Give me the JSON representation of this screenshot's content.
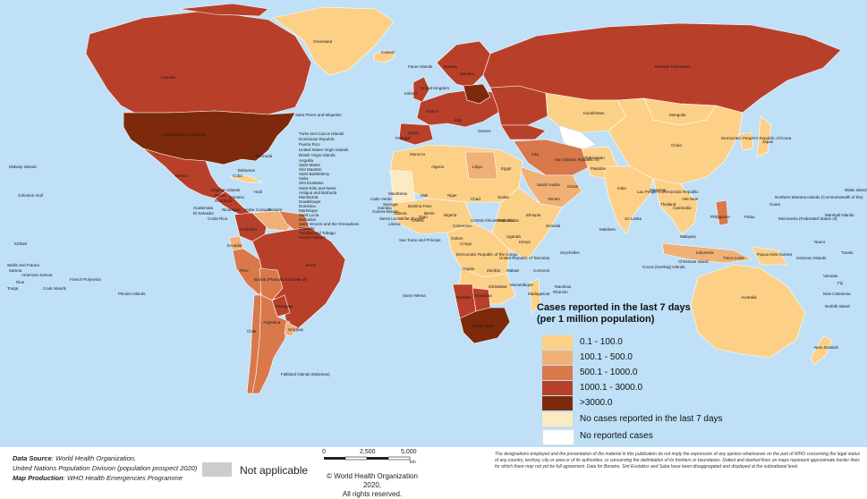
{
  "legend": {
    "title_line1": "Cases reported in the last 7 days",
    "title_line2": "(per 1 million population)",
    "items": [
      {
        "label": "0.1 - 100.0",
        "color": "#fdd088"
      },
      {
        "label": "100.1 - 500.0",
        "color": "#f0b076"
      },
      {
        "label": "500.1 - 1000.0",
        "color": "#d9784a"
      },
      {
        "label": "1000.1 - 3000.0",
        "color": "#b8402a"
      },
      {
        "label": ">3000.0",
        "color": "#7d2a0c"
      },
      {
        "label": "No cases reported in the last 7 days",
        "color": "#fde9c2"
      },
      {
        "label": "No reported cases",
        "color": "#ffffff"
      }
    ]
  },
  "colors": {
    "ocean": "#bfe0f7",
    "not_applicable": "#cccccc",
    "border": "#ffffff"
  },
  "footer": {
    "data_source_label": "Data Source",
    "data_source_text": ": World Health Organization,",
    "data_source_text2": "United Nations Population Division (population prospect 2020)",
    "map_production_label": "Map Production",
    "map_production_text": ": WHO Health Emergencies Programme",
    "not_applicable": "Not applicable",
    "scale_0": "0",
    "scale_mid": "2,500",
    "scale_max": "5,000",
    "scale_unit": "km",
    "copyright_1": "© World Health Organization 2020,",
    "copyright_2": "All rights reserved.",
    "disclaimer": "The designations employed and the presentation of the material in this publication do not imply the expression of any opinion whatsoever on the part of WHO concerning the legal status of any country, territory, city or area or of its authorities, or concerning the delimitation of its frontiers or boundaries. Dotted and dashed lines on maps represent approximate border lines for which there may not yet be full agreement. Data for Bonaire, Sint Eustatius and Saba have been disaggregated and displayed at the subnational level."
  },
  "map_labels": [
    {
      "text": "Canada"
    },
    {
      "text": "Greenland"
    },
    {
      "text": "Iceland"
    },
    {
      "text": "United States of America"
    },
    {
      "text": "Mexico"
    },
    {
      "text": "Cuba"
    },
    {
      "text": "Bermuda"
    },
    {
      "text": "Bahamas"
    },
    {
      "text": "Saint Pierre and Miquelon"
    },
    {
      "text": "Turks and Caicos Islands"
    },
    {
      "text": "Dominican Republic"
    },
    {
      "text": "Puerto Rico"
    },
    {
      "text": "United States Virgin Islands"
    },
    {
      "text": "British Virgin Islands"
    },
    {
      "text": "Anguilla"
    },
    {
      "text": "Saint Martin"
    },
    {
      "text": "Sint Maarten"
    },
    {
      "text": "Saint Barthélemy"
    },
    {
      "text": "Saba"
    },
    {
      "text": "Sint Eustatius"
    },
    {
      "text": "Saint Kitts and Nevis"
    },
    {
      "text": "Antigua and Barbuda"
    },
    {
      "text": "Montserrat"
    },
    {
      "text": "Guadeloupe"
    },
    {
      "text": "Dominica"
    },
    {
      "text": "Martinique"
    },
    {
      "text": "Saint Lucia"
    },
    {
      "text": "Barbados"
    },
    {
      "text": "Saint Vincent and the Grenadines"
    },
    {
      "text": "Grenada"
    },
    {
      "text": "Trinidad and Tobago"
    },
    {
      "text": "French Guiana"
    },
    {
      "text": "Cayman Islands"
    },
    {
      "text": "Belize"
    },
    {
      "text": "Honduras"
    },
    {
      "text": "Guatemala"
    },
    {
      "text": "El Salvador"
    },
    {
      "text": "Nicaragua"
    },
    {
      "text": "Costa Rica"
    },
    {
      "text": "Jamaica"
    },
    {
      "text": "Haiti"
    },
    {
      "text": "Aruba"
    },
    {
      "text": "Curaçao"
    },
    {
      "text": "Bonaire"
    },
    {
      "text": "Colombia"
    },
    {
      "text": "Ecuador"
    },
    {
      "text": "Peru"
    },
    {
      "text": "Brazil"
    },
    {
      "text": "Bolivia (Plurinational State of)"
    },
    {
      "text": "Paraguay"
    },
    {
      "text": "Chile"
    },
    {
      "text": "Argentina"
    },
    {
      "text": "Uruguay"
    },
    {
      "text": "Falkland Islands (Malvinas)"
    },
    {
      "text": "Midway Islands"
    },
    {
      "text": "Johnston Atoll"
    },
    {
      "text": "Kiribati"
    },
    {
      "text": "Wallis and Futuna"
    },
    {
      "text": "Samoa"
    },
    {
      "text": "American Samoa"
    },
    {
      "text": "Niue"
    },
    {
      "text": "Tonga"
    },
    {
      "text": "Cook Islands"
    },
    {
      "text": "French Polynesia"
    },
    {
      "text": "Pitcairn Islands"
    },
    {
      "text": "Faroe Islands"
    },
    {
      "text": "Norway"
    },
    {
      "text": "Sweden"
    },
    {
      "text": "United Kingdom"
    },
    {
      "text": "Ireland"
    },
    {
      "text": "Spain"
    },
    {
      "text": "Portugal"
    },
    {
      "text": "France"
    },
    {
      "text": "Italy"
    },
    {
      "text": "Greece"
    },
    {
      "text": "Russian Federation"
    },
    {
      "text": "Kazakhstan"
    },
    {
      "text": "Mongolia"
    },
    {
      "text": "China"
    },
    {
      "text": "Democratic People's Republic of Korea"
    },
    {
      "text": "Japan"
    },
    {
      "text": "India"
    },
    {
      "text": "Pakistan"
    },
    {
      "text": "Afghanistan"
    },
    {
      "text": "Iran (Islamic Republic of)"
    },
    {
      "text": "Iraq"
    },
    {
      "text": "Saudi Arabia"
    },
    {
      "text": "Yemen"
    },
    {
      "text": "Oman"
    },
    {
      "text": "Egypt"
    },
    {
      "text": "Libya"
    },
    {
      "text": "Algeria"
    },
    {
      "text": "Morocco"
    },
    {
      "text": "Mauritania"
    },
    {
      "text": "Mali"
    },
    {
      "text": "Niger"
    },
    {
      "text": "Chad"
    },
    {
      "text": "Sudan"
    },
    {
      "text": "Ethiopia"
    },
    {
      "text": "Somalia"
    },
    {
      "text": "Nigeria"
    },
    {
      "text": "Cabo Verde"
    },
    {
      "text": "Senegal"
    },
    {
      "text": "Gambia"
    },
    {
      "text": "Guinea-Bissau"
    },
    {
      "text": "Guinea"
    },
    {
      "text": "Sierra Leone"
    },
    {
      "text": "Liberia"
    },
    {
      "text": "Côte d'Ivoire"
    },
    {
      "text": "Ghana"
    },
    {
      "text": "Togo"
    },
    {
      "text": "Benin"
    },
    {
      "text": "Burkina Faso"
    },
    {
      "text": "Cameroon"
    },
    {
      "text": "Central African Republic"
    },
    {
      "text": "South Sudan"
    },
    {
      "text": "Sao Tome and Principe"
    },
    {
      "text": "Gabon"
    },
    {
      "text": "Congo"
    },
    {
      "text": "Democratic Republic of the Congo"
    },
    {
      "text": "Uganda"
    },
    {
      "text": "Kenya"
    },
    {
      "text": "United Republic of Tanzania"
    },
    {
      "text": "Angola"
    },
    {
      "text": "Zambia"
    },
    {
      "text": "Malawi"
    },
    {
      "text": "Mozambique"
    },
    {
      "text": "Zimbabwe"
    },
    {
      "text": "Namibia"
    },
    {
      "text": "Botswana"
    },
    {
      "text": "South Africa"
    },
    {
      "text": "Madagascar"
    },
    {
      "text": "Mauritius"
    },
    {
      "text": "Réunion"
    },
    {
      "text": "Comoros"
    },
    {
      "text": "Seychelles"
    },
    {
      "text": "Saint Helena"
    },
    {
      "text": "Maldives"
    },
    {
      "text": "Sri Lanka"
    },
    {
      "text": "Myanmar"
    },
    {
      "text": "Thailand"
    },
    {
      "text": "Lao People's Democratic Republic"
    },
    {
      "text": "Viet Nam"
    },
    {
      "text": "Cambodia"
    },
    {
      "text": "Malaysia"
    },
    {
      "text": "Indonesia"
    },
    {
      "text": "Philippines"
    },
    {
      "text": "Timor-Leste"
    },
    {
      "text": "Papua New Guinea"
    },
    {
      "text": "Solomon Islands"
    },
    {
      "text": "Christmas Island"
    },
    {
      "text": "Cocos (Keeling) Islands"
    },
    {
      "text": "Australia"
    },
    {
      "text": "New Zealand"
    },
    {
      "text": "New Caledonia"
    },
    {
      "text": "Vanuatu"
    },
    {
      "text": "Fiji"
    },
    {
      "text": "Norfolk Island"
    },
    {
      "text": "Northern Mariana Islands (Commonwealth of the)"
    },
    {
      "text": "Guam"
    },
    {
      "text": "Palau"
    },
    {
      "text": "Micronesia (Federated States of)"
    },
    {
      "text": "Marshall Islands"
    },
    {
      "text": "Wake Island"
    },
    {
      "text": "Nauru"
    },
    {
      "text": "Tuvalu"
    }
  ]
}
